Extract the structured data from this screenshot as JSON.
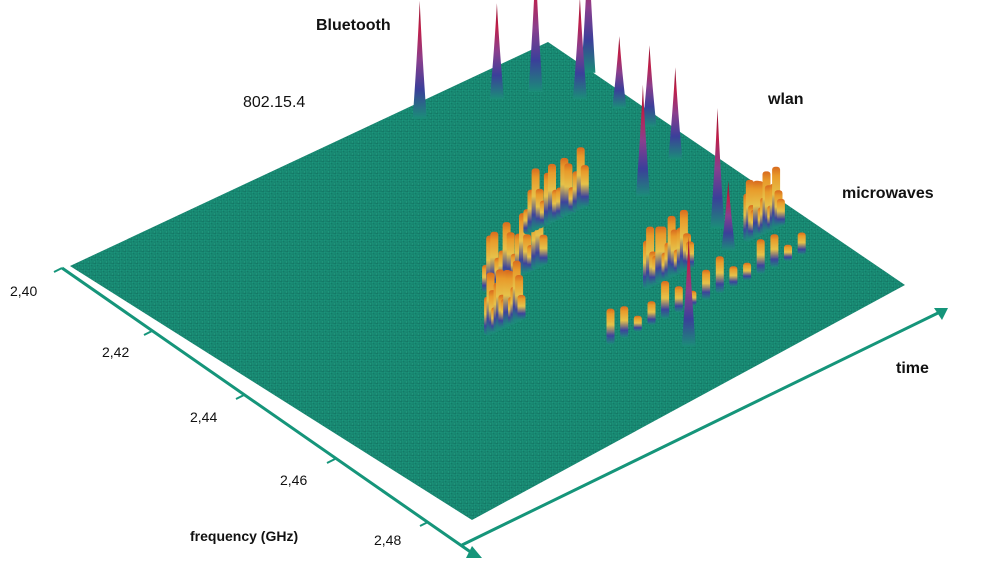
{
  "chart_data": {
    "type": "surface-3d",
    "axes": {
      "frequency": {
        "label": "frequency (GHz)",
        "ticks": [
          "2,40",
          "2,42",
          "2,44",
          "2,46",
          "2,48"
        ]
      },
      "time": {
        "label": "time"
      }
    },
    "annotations": {
      "bluetooth": "Bluetooth",
      "ieee802154": "802.15.4",
      "wlan": "wlan",
      "microwaves": "microwaves"
    },
    "colors": {
      "surface_floor": "#1a8c78",
      "surface_floor_dark": "#0f6f61",
      "axis": "#15957a",
      "low": "#3b3f9a",
      "mid": "#e0b83a",
      "high": "#c01f4a"
    },
    "peaks": [
      {
        "signal": "802.15.4",
        "frequency": 2.403,
        "time": 0.7
      },
      {
        "signal": "802.15.4",
        "frequency": 2.406,
        "time": 0.83
      },
      {
        "signal": "802.15.4",
        "frequency": 2.408,
        "time": 0.89
      },
      {
        "signal": "Bluetooth",
        "frequency": 2.409,
        "time": 0.99
      },
      {
        "signal": "Bluetooth",
        "frequency": 2.413,
        "time": 0.93
      },
      {
        "signal": "Bluetooth",
        "frequency": 2.418,
        "time": 0.96
      },
      {
        "signal": "Bluetooth",
        "frequency": 2.424,
        "time": 0.96
      },
      {
        "signal": "Bluetooth",
        "frequency": 2.432,
        "time": 0.93
      },
      {
        "signal": "Bluetooth",
        "frequency": 2.436,
        "time": 0.82
      },
      {
        "signal": "Bluetooth",
        "frequency": 2.448,
        "time": 0.85
      },
      {
        "signal": "Bluetooth",
        "frequency": 2.453,
        "time": 0.82
      },
      {
        "signal": "Bluetooth",
        "frequency": 2.467,
        "time": 0.59
      }
    ],
    "bursts": [
      {
        "signal": "wlan",
        "frequency": 2.44,
        "time_start": 0.45,
        "time_end": 0.57
      },
      {
        "signal": "wlan",
        "frequency": 2.433,
        "time_start": 0.61,
        "time_end": 0.73
      },
      {
        "signal": "wlan",
        "frequency": 2.453,
        "time_start": 0.65,
        "time_end": 0.74
      },
      {
        "signal": "wlan",
        "frequency": 2.453,
        "time_start": 0.86,
        "time_end": 0.93
      },
      {
        "signal": "wlan",
        "frequency": 2.448,
        "time_start": 0.37,
        "time_end": 0.44
      },
      {
        "signal": "microwaves",
        "frequency": 2.46,
        "time_start": 0.5,
        "time_end": 0.9
      }
    ]
  }
}
